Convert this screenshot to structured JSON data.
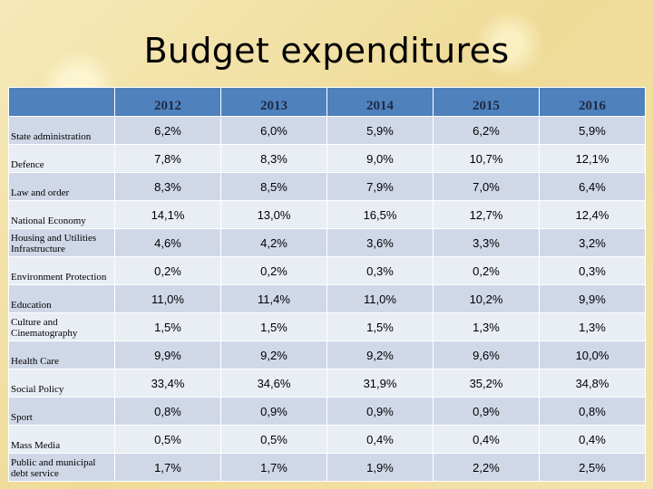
{
  "title": "Budget expenditures",
  "years": [
    "2012",
    "2013",
    "2014",
    "2015",
    "2016"
  ],
  "rows": [
    {
      "label": "State administration",
      "values": [
        "6,2%",
        "6,0%",
        "5,9%",
        "6,2%",
        "5,9%"
      ]
    },
    {
      "label": "Defence",
      "values": [
        "7,8%",
        "8,3%",
        "9,0%",
        "10,7%",
        "12,1%"
      ]
    },
    {
      "label": "Law and order",
      "values": [
        "8,3%",
        "8,5%",
        "7,9%",
        "7,0%",
        "6,4%"
      ]
    },
    {
      "label": "National Economy",
      "values": [
        "14,1%",
        "13,0%",
        "16,5%",
        "12,7%",
        "12,4%"
      ]
    },
    {
      "label": "Housing and Utilities Infrastructure",
      "values": [
        "4,6%",
        "4,2%",
        "3,6%",
        "3,3%",
        "3,2%"
      ]
    },
    {
      "label": "Environment Protection",
      "values": [
        "0,2%",
        "0,2%",
        "0,3%",
        "0,2%",
        "0,3%"
      ]
    },
    {
      "label": "Education",
      "values": [
        "11,0%",
        "11,4%",
        "11,0%",
        "10,2%",
        "9,9%"
      ]
    },
    {
      "label": "Culture and Cinematography",
      "values": [
        "1,5%",
        "1,5%",
        "1,5%",
        "1,3%",
        "1,3%"
      ]
    },
    {
      "label": "Health Care",
      "values": [
        "9,9%",
        "9,2%",
        "9,2%",
        "9,6%",
        "10,0%"
      ]
    },
    {
      "label": "Social Policy",
      "values": [
        "33,4%",
        "34,6%",
        "31,9%",
        "35,2%",
        "34,8%"
      ]
    },
    {
      "label": "Sport",
      "values": [
        "0,8%",
        "0,9%",
        "0,9%",
        "0,9%",
        "0,8%"
      ]
    },
    {
      "label": "Mass Media",
      "values": [
        "0,5%",
        "0,5%",
        "0,4%",
        "0,4%",
        "0,4%"
      ]
    },
    {
      "label": "Public and municipal debt service",
      "values": [
        "1,7%",
        "1,7%",
        "1,9%",
        "2,2%",
        "2,5%"
      ]
    }
  ]
}
